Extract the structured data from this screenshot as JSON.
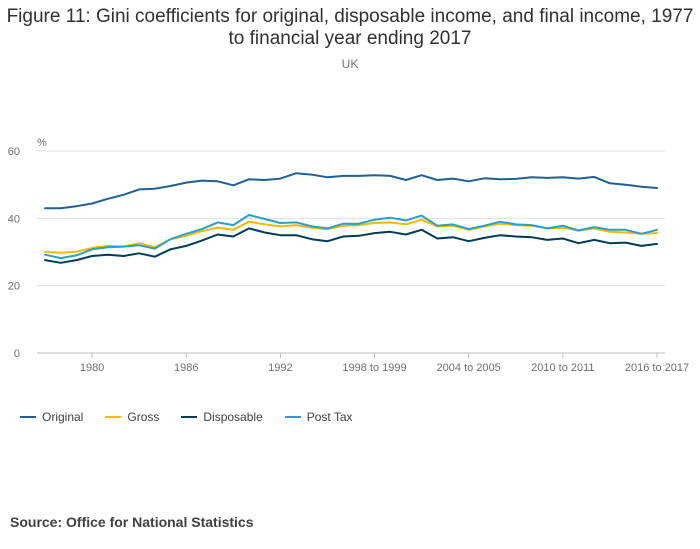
{
  "title": "Figure 11: Gini coefficients for original, disposable income, and final income, 1977 to financial year ending 2017",
  "subtitle": "UK",
  "source": "Source: Office for National Statistics",
  "chart_data": {
    "type": "line",
    "title": "Figure 11: Gini coefficients for original, disposable income, and final income, 1977 to financial year ending 2017",
    "subtitle": "UK",
    "y_unit": "%",
    "ylim": [
      0,
      60
    ],
    "yticks": [
      0,
      20,
      40,
      60
    ],
    "grid": true,
    "legend_position": "bottom-left",
    "x": [
      "1977",
      "1978",
      "1979",
      "1980",
      "1981",
      "1982",
      "1983",
      "1984",
      "1985",
      "1986",
      "1987",
      "1988",
      "1989",
      "1990",
      "1991",
      "1992",
      "1993",
      "1994",
      "1995",
      "1996",
      "1997",
      "1998 to 1999",
      "1999 to 2000",
      "2000 to 2001",
      "2001 to 2002",
      "2002 to 2003",
      "2003 to 2004",
      "2004 to 2005",
      "2005 to 2006",
      "2006 to 2007",
      "2007 to 2008",
      "2008 to 2009",
      "2009 to 2010",
      "2010 to 2011",
      "2011 to 2012",
      "2012 to 2013",
      "2013 to 2014",
      "2014 to 2015",
      "2015 to 2016",
      "2016 to 2017"
    ],
    "x_tick_labels": [
      {
        "index": 3,
        "label": "1980"
      },
      {
        "index": 9,
        "label": "1986"
      },
      {
        "index": 15,
        "label": "1992"
      },
      {
        "index": 21,
        "label": "1998 to 1999"
      },
      {
        "index": 27,
        "label": "2004 to 2005"
      },
      {
        "index": 33,
        "label": "2010 to 2011"
      },
      {
        "index": 39,
        "label": "2016 to 2017"
      }
    ],
    "series": [
      {
        "name": "Original",
        "color": "#206095",
        "values": [
          43,
          43,
          43.6,
          44.4,
          45.8,
          47,
          48.6,
          48.8,
          49.6,
          50.6,
          51.2,
          51,
          49.8,
          51.6,
          51.4,
          51.8,
          53.4,
          53,
          52.2,
          52.6,
          52.6,
          52.8,
          52.6,
          51.4,
          52.8,
          51.4,
          51.8,
          51,
          51.9,
          51.6,
          51.7,
          52.2,
          52,
          52.2,
          51.8,
          52.3,
          50.4,
          50,
          49.4,
          49
        ]
      },
      {
        "name": "Gross",
        "color": "#F6B900",
        "values": [
          30,
          29.8,
          30.1,
          31.2,
          31.8,
          31.6,
          32.6,
          31.4,
          33.8,
          34.8,
          36.2,
          37.2,
          36.6,
          39,
          38.2,
          37.6,
          38,
          37.2,
          36.8,
          37.8,
          38,
          38.6,
          38.8,
          38.2,
          39.6,
          37.6,
          37.8,
          36.6,
          37.6,
          38.4,
          38,
          37.8,
          37,
          37.2,
          36.4,
          37,
          36,
          35.8,
          35.4,
          35.6
        ]
      },
      {
        "name": "Disposable",
        "color": "#003C57",
        "values": [
          27.6,
          26.8,
          27.6,
          28.8,
          29.2,
          28.8,
          29.6,
          28.6,
          30.8,
          31.8,
          33.4,
          35.2,
          34.6,
          37,
          35.8,
          35,
          35,
          33.8,
          33.2,
          34.6,
          34.8,
          35.6,
          36,
          35.2,
          36.6,
          34,
          34.4,
          33.2,
          34.2,
          35,
          34.6,
          34.4,
          33.6,
          34,
          32.6,
          33.6,
          32.6,
          32.8,
          31.8,
          32.4
        ]
      },
      {
        "name": "Post Tax",
        "color": "#27A0CC",
        "values": [
          29.2,
          28.2,
          29,
          30.8,
          31.4,
          31.6,
          32,
          31,
          33.8,
          35.4,
          36.8,
          38.8,
          38,
          41,
          39.8,
          38.6,
          38.8,
          37.6,
          37,
          38.4,
          38.4,
          39.6,
          40.2,
          39.4,
          40.8,
          37.8,
          38.2,
          36.8,
          37.8,
          39,
          38.2,
          38,
          37,
          37.8,
          36.4,
          37.4,
          36.6,
          36.6,
          35.4,
          36.6
        ]
      }
    ]
  }
}
